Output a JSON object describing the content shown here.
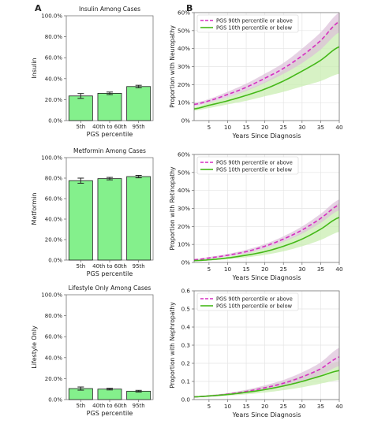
{
  "panel_labels": [
    "A",
    "B"
  ],
  "colors": {
    "bar_fill": "#84f08c",
    "bar_edge": "#1f1f1f",
    "error_bar": "#222222",
    "line_90th": "#d62fc0",
    "band_90th": "#f0b8ea",
    "line_10th": "#44b818",
    "band_10th": "#c9eeb2",
    "band_overlap": "#c8c8c8",
    "axis": "#666666",
    "text": "#222222"
  },
  "chart_data": [
    {
      "type": "bar",
      "title": "Insulin Among Cases",
      "xlabel": "PGS percentile",
      "ylabel": "Insulin",
      "categories": [
        "5th",
        "40th to 60th",
        "95th"
      ],
      "values": [
        0.235,
        0.26,
        0.325
      ],
      "errors": [
        0.023,
        0.012,
        0.012
      ],
      "ylim": [
        0,
        1
      ],
      "yticks": [
        0,
        0.2,
        0.4,
        0.6,
        0.8,
        1.0
      ],
      "yticklabels": [
        "0.0%",
        "20.0%",
        "40.0%",
        "60.0%",
        "80.0%",
        "100.0%"
      ],
      "grid": false
    },
    {
      "type": "bar",
      "title": "Metformin Among Cases",
      "xlabel": "PGS percentile",
      "ylabel": "Metformin",
      "categories": [
        "5th",
        "40th to 60th",
        "95th"
      ],
      "values": [
        0.775,
        0.795,
        0.815
      ],
      "errors": [
        0.025,
        0.012,
        0.012
      ],
      "ylim": [
        0,
        1
      ],
      "yticks": [
        0,
        0.2,
        0.4,
        0.6,
        0.8,
        1.0
      ],
      "yticklabels": [
        "0.0%",
        "20.0%",
        "40.0%",
        "60.0%",
        "80.0%",
        "100.0%"
      ],
      "grid": false
    },
    {
      "type": "bar",
      "title": "Lifestyle Only Among Cases",
      "xlabel": "PGS percentile",
      "ylabel": "Lifestyle Only",
      "categories": [
        "5th",
        "40th to 60th",
        "95th"
      ],
      "values": [
        0.105,
        0.1,
        0.08
      ],
      "errors": [
        0.015,
        0.008,
        0.008
      ],
      "ylim": [
        0,
        1
      ],
      "yticks": [
        0,
        0.2,
        0.4,
        0.6,
        0.8,
        1.0
      ],
      "yticklabels": [
        "0.0%",
        "20.0%",
        "40.0%",
        "60.0%",
        "80.0%",
        "100.0%"
      ],
      "grid": false
    },
    {
      "type": "line",
      "xlabel": "Years Since Diagnosis",
      "ylabel": "Proportion with Neuropathy",
      "xlim": [
        1,
        40
      ],
      "ylim": [
        0,
        0.6
      ],
      "xticks": [
        5,
        10,
        15,
        20,
        25,
        30,
        35,
        40
      ],
      "yticks": [
        0,
        0.1,
        0.2,
        0.3,
        0.4,
        0.5,
        0.6
      ],
      "yticklabels": [
        "0%",
        "10%",
        "20%",
        "30%",
        "40%",
        "50%",
        "60%"
      ],
      "grid": true,
      "legend_position": "top-left",
      "series": [
        {
          "name": "PGS 90th percentile or above",
          "key": "top",
          "style": "dashed",
          "x": [
            1,
            5,
            10,
            15,
            20,
            25,
            30,
            35,
            40
          ],
          "values": [
            0.09,
            0.11,
            0.145,
            0.185,
            0.235,
            0.29,
            0.36,
            0.445,
            0.55
          ],
          "lower": [
            0.08,
            0.1,
            0.13,
            0.165,
            0.21,
            0.26,
            0.32,
            0.395,
            0.49
          ],
          "upper": [
            0.1,
            0.12,
            0.16,
            0.205,
            0.26,
            0.32,
            0.4,
            0.49,
            0.6
          ]
        },
        {
          "name": "PGS 10th percentile or below",
          "key": "bottom",
          "style": "solid",
          "x": [
            1,
            5,
            10,
            15,
            20,
            25,
            30,
            35,
            40
          ],
          "values": [
            0.065,
            0.085,
            0.11,
            0.14,
            0.175,
            0.22,
            0.275,
            0.335,
            0.41
          ],
          "lower": [
            0.055,
            0.07,
            0.09,
            0.11,
            0.135,
            0.16,
            0.19,
            0.22,
            0.26
          ],
          "upper": [
            0.075,
            0.1,
            0.13,
            0.17,
            0.215,
            0.28,
            0.36,
            0.45,
            0.56
          ]
        }
      ]
    },
    {
      "type": "line",
      "xlabel": "Years Since Diagnosis",
      "ylabel": "Proportion with Retinopathy",
      "xlim": [
        1,
        40
      ],
      "ylim": [
        0,
        0.6
      ],
      "xticks": [
        5,
        10,
        15,
        20,
        25,
        30,
        35,
        40
      ],
      "yticks": [
        0,
        0.1,
        0.2,
        0.3,
        0.4,
        0.5,
        0.6
      ],
      "yticklabels": [
        "0%",
        "10%",
        "20%",
        "30%",
        "40%",
        "50%",
        "60%"
      ],
      "grid": true,
      "legend_position": "top-left",
      "series": [
        {
          "name": "PGS 90th percentile or above",
          "key": "top",
          "style": "dashed",
          "x": [
            1,
            5,
            10,
            15,
            20,
            25,
            30,
            35,
            40
          ],
          "values": [
            0.015,
            0.025,
            0.04,
            0.06,
            0.09,
            0.13,
            0.18,
            0.245,
            0.32
          ],
          "lower": [
            0.012,
            0.02,
            0.033,
            0.05,
            0.078,
            0.115,
            0.16,
            0.22,
            0.29
          ],
          "upper": [
            0.018,
            0.03,
            0.047,
            0.07,
            0.102,
            0.145,
            0.2,
            0.27,
            0.35
          ]
        },
        {
          "name": "PGS 10th percentile or below",
          "key": "bottom",
          "style": "solid",
          "x": [
            1,
            5,
            10,
            15,
            20,
            25,
            30,
            35,
            40
          ],
          "values": [
            0.01,
            0.015,
            0.025,
            0.04,
            0.06,
            0.09,
            0.13,
            0.185,
            0.25
          ],
          "lower": [
            0.007,
            0.011,
            0.018,
            0.028,
            0.042,
            0.062,
            0.09,
            0.125,
            0.17
          ],
          "upper": [
            0.013,
            0.019,
            0.032,
            0.052,
            0.078,
            0.118,
            0.17,
            0.245,
            0.33
          ]
        }
      ]
    },
    {
      "type": "line",
      "xlabel": "Years Since Diagnosis",
      "ylabel": "Proportion with Nephropathy",
      "xlim": [
        1,
        40
      ],
      "ylim": [
        0,
        0.6
      ],
      "xticks": [
        5,
        10,
        15,
        20,
        25,
        30,
        35,
        40
      ],
      "yticks": [
        0.0,
        0.1,
        0.2,
        0.3,
        0.4,
        0.5,
        0.6
      ],
      "yticklabels": [
        "0.0",
        "0.1",
        "0.2",
        "0.3",
        "0.4",
        "0.5",
        "0.6"
      ],
      "grid": true,
      "legend_position": "top-left",
      "series": [
        {
          "name": "PGS 90th percentile or above",
          "key": "top",
          "style": "dashed",
          "x": [
            1,
            5,
            10,
            15,
            20,
            25,
            30,
            35,
            40
          ],
          "values": [
            0.015,
            0.02,
            0.03,
            0.045,
            0.065,
            0.09,
            0.125,
            0.17,
            0.235
          ],
          "lower": [
            0.012,
            0.016,
            0.024,
            0.036,
            0.052,
            0.072,
            0.1,
            0.135,
            0.185
          ],
          "upper": [
            0.018,
            0.024,
            0.036,
            0.054,
            0.078,
            0.108,
            0.15,
            0.205,
            0.285
          ]
        },
        {
          "name": "PGS 10th percentile or below",
          "key": "bottom",
          "style": "solid",
          "x": [
            1,
            5,
            10,
            15,
            20,
            25,
            30,
            35,
            40
          ],
          "values": [
            0.015,
            0.02,
            0.028,
            0.04,
            0.055,
            0.075,
            0.1,
            0.13,
            0.16
          ],
          "lower": [
            0.012,
            0.015,
            0.021,
            0.029,
            0.039,
            0.052,
            0.068,
            0.088,
            0.108
          ],
          "upper": [
            0.018,
            0.025,
            0.035,
            0.051,
            0.071,
            0.098,
            0.132,
            0.172,
            0.212
          ]
        }
      ]
    }
  ]
}
